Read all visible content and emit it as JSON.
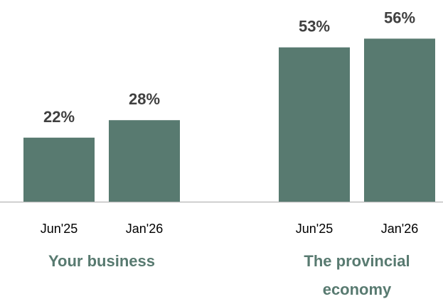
{
  "chart_data": {
    "type": "bar",
    "color": "#587a70",
    "groups": [
      {
        "name": "Your business",
        "categories": [
          "Jun'25",
          "Jan'26"
        ],
        "values": [
          22,
          28
        ],
        "value_labels": [
          "22%",
          "28%"
        ]
      },
      {
        "name": "The provincial economy",
        "categories": [
          "Jun'25",
          "Jan'26"
        ],
        "values": [
          53,
          56
        ],
        "value_labels": [
          "53%",
          "56%"
        ]
      }
    ]
  }
}
